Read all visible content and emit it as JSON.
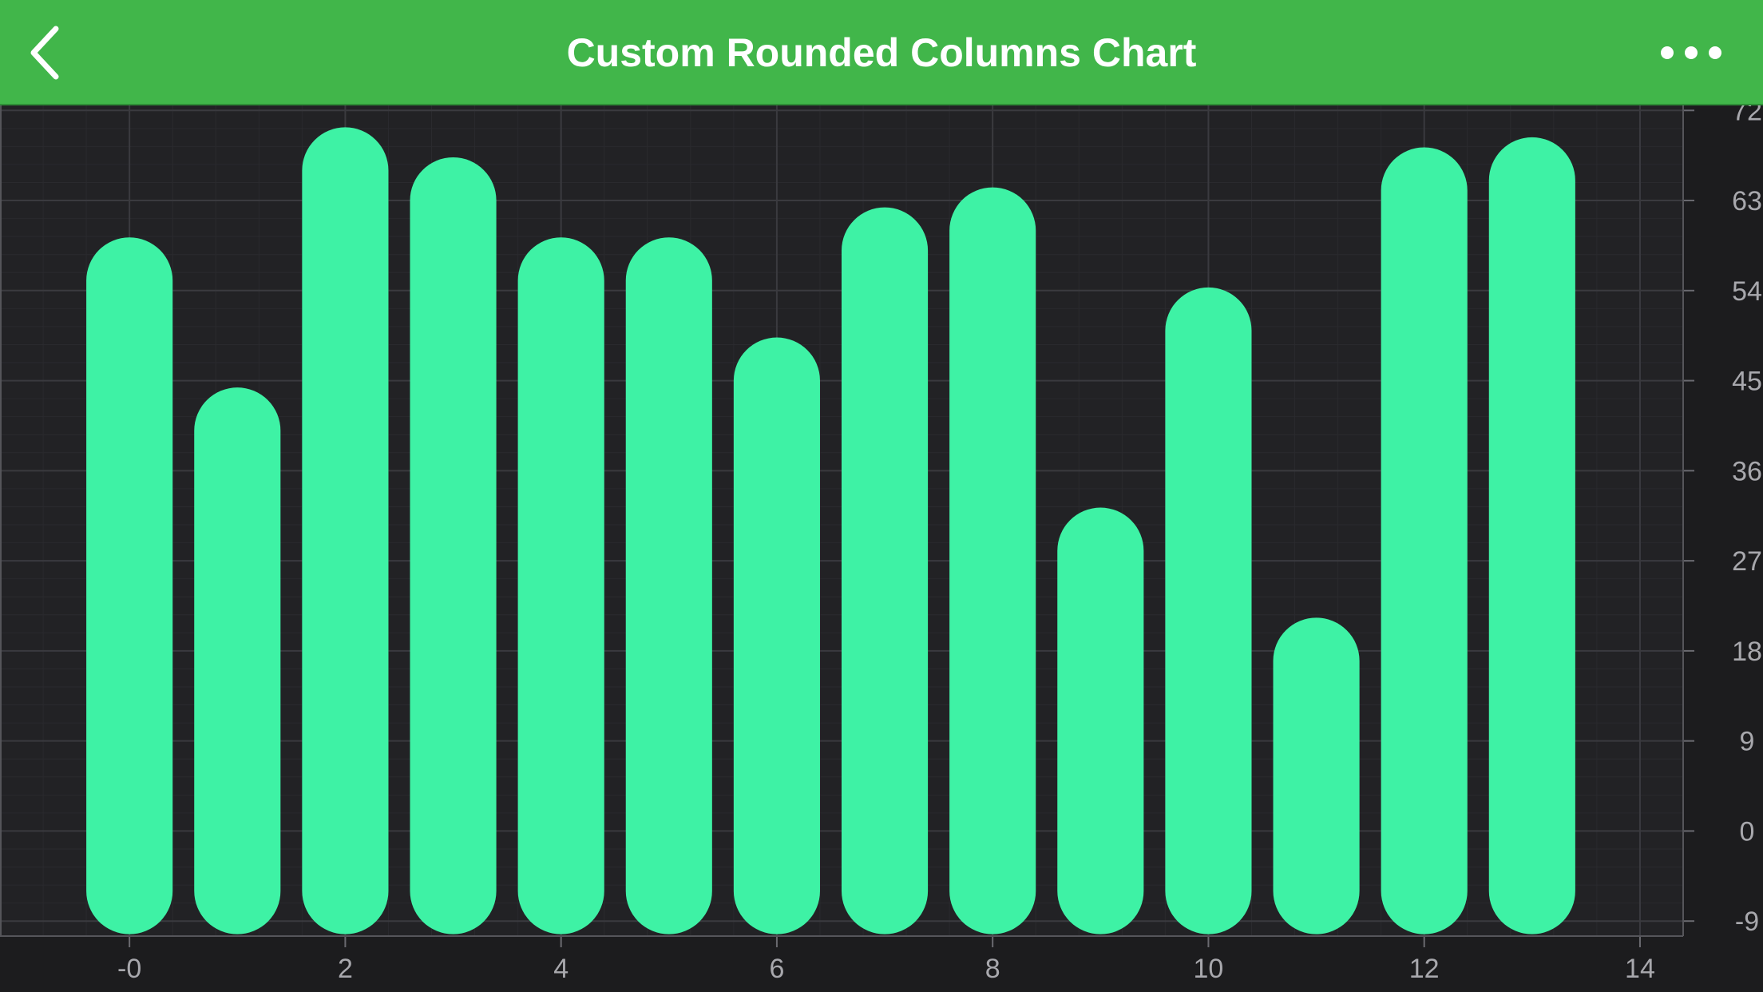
{
  "header": {
    "title": "Custom Rounded Columns Chart",
    "back_icon": "chevron-left-icon",
    "more_icon": "more-horizontal-icon",
    "background_color": "#41b64a"
  },
  "chart_data": {
    "type": "bar",
    "style": "rounded-columns",
    "x": [
      0,
      1,
      2,
      3,
      4,
      5,
      6,
      7,
      8,
      9,
      10,
      11,
      12,
      13
    ],
    "values": [
      55,
      40,
      66,
      63,
      55,
      55,
      45,
      58,
      60,
      28,
      50,
      17,
      64,
      65
    ],
    "baseline": -6,
    "xlim": [
      -1.2,
      14.4
    ],
    "ylim": [
      -10.5,
      72.5
    ],
    "x_ticks": [
      0,
      2,
      4,
      6,
      8,
      10,
      12,
      14
    ],
    "x_tick_labels": [
      "-0",
      "2",
      "4",
      "6",
      "8",
      "10",
      "12",
      "14"
    ],
    "y_ticks": [
      -9,
      0,
      9,
      18,
      27,
      36,
      45,
      54,
      63,
      72
    ],
    "y_tick_labels": [
      "-9",
      "0",
      "9",
      "18",
      "27",
      "36",
      "45",
      "54",
      "63",
      "72"
    ],
    "y_axis_position": "right",
    "grid": true,
    "bar_color": "#3ef2a5",
    "background_color": "#1c1c1e",
    "title": "",
    "xlabel": "",
    "ylabel": ""
  }
}
